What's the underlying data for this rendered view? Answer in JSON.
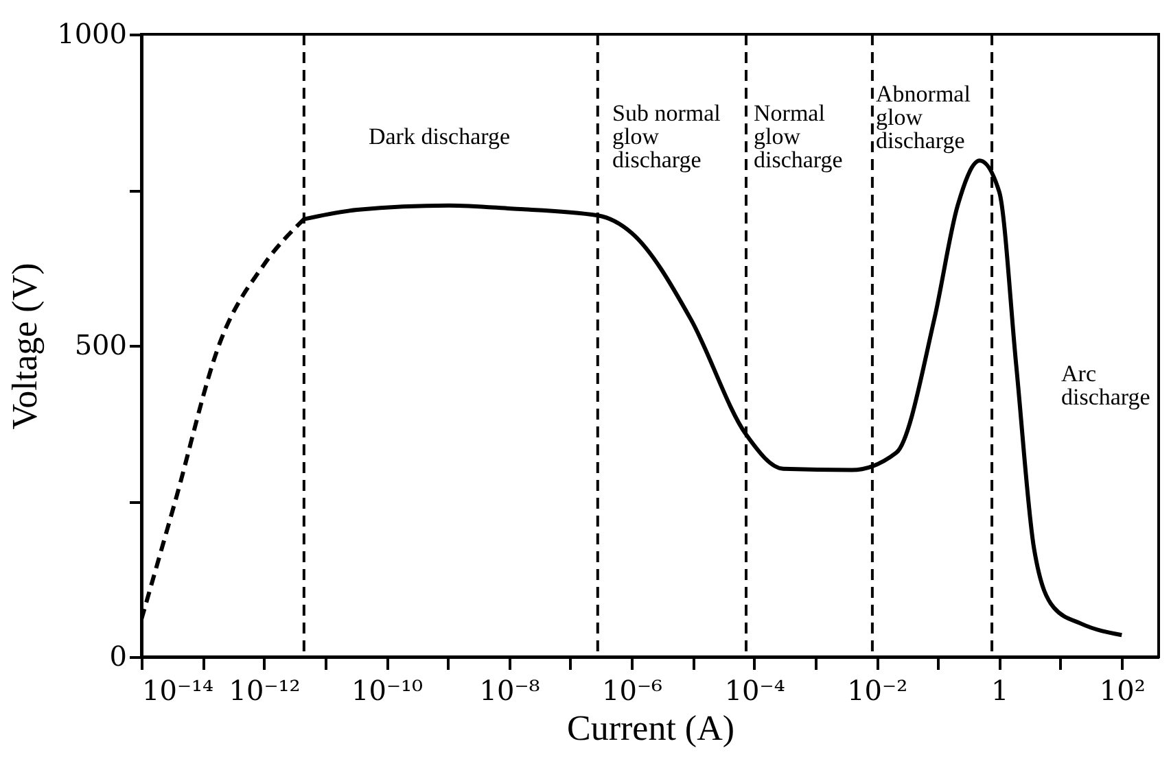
{
  "chart_data": {
    "type": "line",
    "xlabel": "Current (A)",
    "ylabel": "Voltage (V)",
    "log": "x",
    "xlim": [
      1e-14,
      400
    ],
    "ylim": [
      0,
      1000
    ],
    "xticks": [
      {
        "value": 1e-14,
        "label": "10⁻¹⁴"
      },
      {
        "value": 1e-13,
        "label": null
      },
      {
        "value": 1e-12,
        "label": "10⁻¹²"
      },
      {
        "value": 1e-11,
        "label": null
      },
      {
        "value": 1e-10,
        "label": "10⁻¹⁰"
      },
      {
        "value": 1e-09,
        "label": null
      },
      {
        "value": 1e-08,
        "label": "10⁻⁸"
      },
      {
        "value": 1e-07,
        "label": null
      },
      {
        "value": 1e-06,
        "label": "10⁻⁶"
      },
      {
        "value": 1e-05,
        "label": null
      },
      {
        "value": 0.0001,
        "label": "10⁻⁴"
      },
      {
        "value": 0.001,
        "label": null
      },
      {
        "value": 0.01,
        "label": "10⁻²"
      },
      {
        "value": 0.1,
        "label": null
      },
      1,
      {
        "value": 10,
        "label": null
      },
      {
        "value": 100,
        "label": "10²"
      }
    ],
    "yticks": [
      0,
      {
        "value": 250,
        "label": null
      },
      500,
      {
        "value": 750,
        "label": null
      },
      1000
    ],
    "series": [
      {
        "color": "#000000",
        "line_style": "dashed",
        "x": [
          1e-14,
          3.5e-14,
          1.9e-13,
          1e-12,
          4.5e-12
        ],
        "values": [
          60,
          247,
          504,
          630,
          703
        ]
      },
      {
        "color": "#000000",
        "line_style": "solid",
        "x": [
          4.5e-12,
          3.3e-11,
          1.05e-09,
          1.07e-08,
          2.8e-07,
          1e-06,
          9.3e-06,
          7.4e-05,
          0.0003,
          0.0039,
          0.021,
          0.087,
          0.21,
          0.48,
          1,
          1.9,
          3.7,
          7.8,
          22,
          100
        ],
        "values": [
          703,
          718,
          725,
          720,
          709,
          681,
          542,
          357,
          302,
          300,
          328,
          542,
          725,
          797,
          747,
          467,
          174,
          79,
          53,
          35
        ]
      }
    ],
    "ref_lines": [
      {
        "axis": "x",
        "value": 4.5e-12,
        "line_style": "dashed"
      },
      {
        "axis": "x",
        "value": 2.8e-07,
        "line_style": "dashed"
      },
      {
        "axis": "x",
        "value": 7.4e-05,
        "line_style": "dashed"
      },
      {
        "axis": "x",
        "value": 0.0085,
        "line_style": "dashed"
      },
      {
        "axis": "x",
        "value": 0.76,
        "line_style": "dashed"
      }
    ],
    "annotations": [
      "Dark discharge",
      "Sub normal\nglow\ndischarge",
      "Normal\nglow\ndischarge",
      "Abnormal\nglow\ndischarge",
      "Arc\ndischarge"
    ]
  }
}
